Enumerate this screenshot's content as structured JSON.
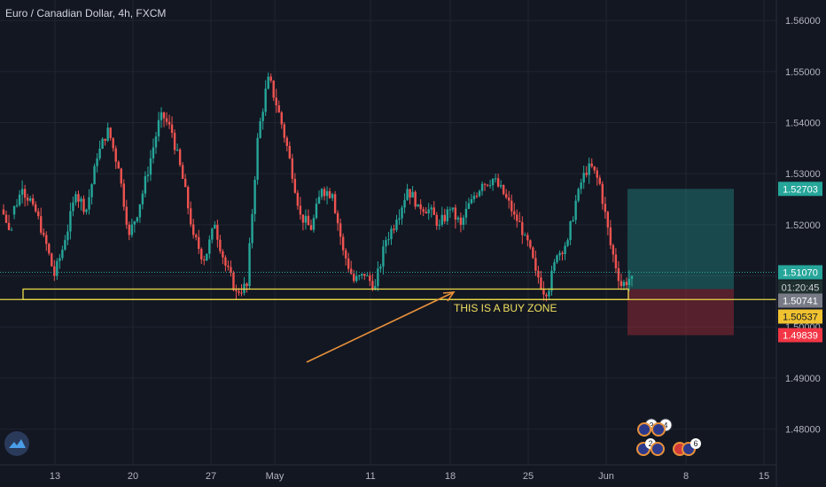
{
  "chart_data": {
    "type": "candlestick",
    "title": "Euro / Canadian Dollar, 4h, FXCM",
    "y_axis": {
      "ticks": [
        "1.56000",
        "1.55000",
        "1.54000",
        "1.53000",
        "1.52000",
        "1.51000",
        "1.50000",
        "1.49000",
        "1.48000"
      ],
      "range": [
        1.473,
        1.564
      ]
    },
    "x_axis": {
      "ticks": [
        "13",
        "20",
        "27",
        "May",
        "11",
        "18",
        "25",
        "Jun",
        "8",
        "15"
      ]
    },
    "price_badges": [
      {
        "label": "1.52703",
        "value": 1.52703,
        "bg": "#26a69a",
        "fg": "#ffffff"
      },
      {
        "label": "1.51070",
        "value": 1.5107,
        "bg": "#26a69a",
        "fg": "#ffffff"
      },
      {
        "label": "01:20:45",
        "value": 1.50898,
        "bg": "#1e2f2e",
        "fg": "#d1d4dc"
      },
      {
        "label": "1.50741",
        "value": 1.50741,
        "bg": "#787b86",
        "fg": "#ffffff"
      },
      {
        "label": "1.50537",
        "value": 1.50537,
        "bg": "#f0c230",
        "fg": "#131722"
      },
      {
        "label": "1.49839",
        "value": 1.49839,
        "bg": "#f23645",
        "fg": "#ffffff"
      }
    ],
    "position": {
      "entry": 1.50741,
      "target": 1.52703,
      "stop": 1.49839
    },
    "buy_zone": {
      "top": 1.50741,
      "bottom": 1.50537,
      "label": "THIS IS A BUY ZONE"
    },
    "key_prices": [
      [
        1.523,
        1.519,
        1.525,
        1.522
      ],
      [
        1.522,
        1.527,
        1.529,
        1.52
      ],
      [
        1.527,
        1.524,
        1.528,
        1.523
      ],
      [
        1.524,
        1.518,
        1.525,
        1.517
      ],
      [
        1.518,
        1.51,
        1.519,
        1.509
      ],
      [
        1.51,
        1.517,
        1.518,
        1.509
      ],
      [
        1.517,
        1.526,
        1.527,
        1.516
      ],
      [
        1.526,
        1.523,
        1.528,
        1.522
      ],
      [
        1.523,
        1.533,
        1.534,
        1.522
      ],
      [
        1.533,
        1.539,
        1.54,
        1.532
      ],
      [
        1.539,
        1.531,
        1.54,
        1.53
      ],
      [
        1.531,
        1.518,
        1.532,
        1.517
      ],
      [
        1.518,
        1.524,
        1.525,
        1.517
      ],
      [
        1.524,
        1.533,
        1.535,
        1.523
      ],
      [
        1.533,
        1.542,
        1.543,
        1.532
      ],
      [
        1.542,
        1.538,
        1.545,
        1.537
      ],
      [
        1.538,
        1.529,
        1.539,
        1.527
      ],
      [
        1.529,
        1.518,
        1.53,
        1.517
      ],
      [
        1.518,
        1.513,
        1.519,
        1.512
      ],
      [
        1.513,
        1.52,
        1.521,
        1.512
      ],
      [
        1.52,
        1.512,
        1.521,
        1.51
      ],
      [
        1.512,
        1.507,
        1.513,
        1.505
      ],
      [
        1.507,
        1.508,
        1.51,
        1.506
      ],
      [
        1.508,
        1.537,
        1.539,
        1.507
      ],
      [
        1.537,
        1.549,
        1.553,
        1.536
      ],
      [
        1.549,
        1.542,
        1.55,
        1.541
      ],
      [
        1.542,
        1.533,
        1.543,
        1.532
      ],
      [
        1.533,
        1.522,
        1.534,
        1.521
      ],
      [
        1.522,
        1.519,
        1.523,
        1.518
      ],
      [
        1.519,
        1.527,
        1.529,
        1.518
      ],
      [
        1.527,
        1.526,
        1.53,
        1.524
      ],
      [
        1.526,
        1.515,
        1.527,
        1.514
      ],
      [
        1.515,
        1.509,
        1.516,
        1.508
      ],
      [
        1.509,
        1.51,
        1.511,
        1.508
      ],
      [
        1.51,
        1.508,
        1.511,
        1.507
      ],
      [
        1.508,
        1.517,
        1.518,
        1.507
      ],
      [
        1.517,
        1.521,
        1.526,
        1.516
      ],
      [
        1.521,
        1.527,
        1.528,
        1.52
      ],
      [
        1.527,
        1.524,
        1.528,
        1.523
      ],
      [
        1.524,
        1.523,
        1.525,
        1.518
      ],
      [
        1.523,
        1.52,
        1.526,
        1.519
      ],
      [
        1.52,
        1.523,
        1.524,
        1.519
      ],
      [
        1.523,
        1.52,
        1.524,
        1.518
      ],
      [
        1.52,
        1.525,
        1.526,
        1.519
      ],
      [
        1.525,
        1.528,
        1.529,
        1.524
      ],
      [
        1.528,
        1.529,
        1.531,
        1.526
      ],
      [
        1.529,
        1.526,
        1.53,
        1.525
      ],
      [
        1.526,
        1.522,
        1.527,
        1.521
      ],
      [
        1.522,
        1.518,
        1.523,
        1.515
      ],
      [
        1.518,
        1.511,
        1.519,
        1.51
      ],
      [
        1.511,
        1.506,
        1.512,
        1.505
      ],
      [
        1.506,
        1.514,
        1.515,
        1.505
      ],
      [
        1.514,
        1.517,
        1.519,
        1.513
      ],
      [
        1.517,
        1.527,
        1.528,
        1.516
      ],
      [
        1.527,
        1.532,
        1.538,
        1.526
      ],
      [
        1.532,
        1.528,
        1.533,
        1.527
      ],
      [
        1.528,
        1.516,
        1.529,
        1.515
      ],
      [
        1.516,
        1.508,
        1.517,
        1.506
      ],
      [
        1.508,
        1.51,
        1.512,
        1.507
      ]
    ]
  },
  "badges": {
    "row1": [
      "3",
      "4"
    ],
    "row2": [
      "2",
      "",
      "",
      "6"
    ]
  },
  "tv_logo": "tradingview-logo"
}
